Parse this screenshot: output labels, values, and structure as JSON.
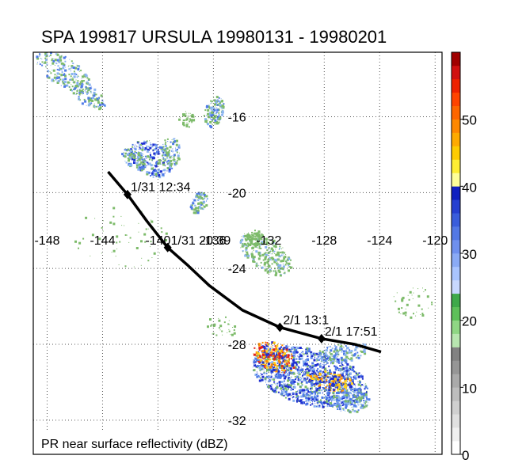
{
  "title": "SPA 199817 URSULA 19980131 - 19980201",
  "caption": "PR near surface reflectivity (dBZ)",
  "map": {
    "lon_range": [
      -149,
      -119.5
    ],
    "lat_range": [
      -33.8,
      -12.6
    ],
    "lon_ticks": [
      -148,
      -144,
      -140,
      -136,
      -132,
      -128,
      -124,
      -120
    ],
    "lon_labels": [
      "-148",
      "-144",
      "-140",
      "-136",
      "-132",
      "-128",
      "-124",
      "-120"
    ],
    "lon_label_lat": -22.5,
    "lat_ticks": [
      -16,
      -20,
      -24,
      -28,
      -32
    ],
    "lat_labels": [
      "-16",
      "-20",
      "-24",
      "-28",
      "-32"
    ],
    "lat_label_lon": -134.3,
    "track": [
      [
        -143.6,
        -18.9
      ],
      [
        -142.2,
        -20.1
      ],
      [
        -140.8,
        -21.5
      ],
      [
        -139.3,
        -22.9
      ],
      [
        -137.9,
        -23.8
      ],
      [
        -136.3,
        -24.9
      ],
      [
        -133.9,
        -26.2
      ],
      [
        -131.2,
        -27.1
      ],
      [
        -128.2,
        -27.7
      ],
      [
        -125.8,
        -28.0
      ],
      [
        -123.9,
        -28.4
      ]
    ],
    "fixes": [
      {
        "lon": -142.2,
        "lat": -20.1,
        "label": "1/31 12:34"
      },
      {
        "lon": -139.3,
        "lat": -22.9,
        "label": "1/31 20:39"
      },
      {
        "lon": -131.2,
        "lat": -27.1,
        "label": "2/1 13:1"
      },
      {
        "lon": -128.2,
        "lat": -27.7,
        "label": "2/1 17:51"
      }
    ]
  },
  "colorbar": {
    "range": [
      0,
      60
    ],
    "labels": [
      "0",
      "10",
      "20",
      "30",
      "40",
      "50"
    ],
    "label_values": [
      0,
      10,
      20,
      30,
      40,
      50
    ],
    "colors": [
      "#ffffff",
      "#f0f0f0",
      "#e0e0e0",
      "#d0d0d0",
      "#bdbdbd",
      "#aaaaaa",
      "#969696",
      "#828282",
      "#b8e6b0",
      "#8fd684",
      "#5ec05a",
      "#3fa94a",
      "#c8d8ff",
      "#a9c4ff",
      "#8aaaf5",
      "#6f90ee",
      "#5378e5",
      "#3a5ddb",
      "#2640d0",
      "#1020c0",
      "#ffff99",
      "#ffee33",
      "#ffcc00",
      "#ffaa00",
      "#ff8800",
      "#ff6600",
      "#ff4400",
      "#ee2200",
      "#d11010",
      "#a00000"
    ]
  },
  "echo_colors": {
    "green": "#7dbb6a",
    "light_blue": "#8ab4f0",
    "mid_blue": "#4f7be8",
    "deep_blue": "#1f2fd0",
    "yellow": "#ffd21a",
    "orange": "#ff8c00",
    "red": "#e02020"
  }
}
